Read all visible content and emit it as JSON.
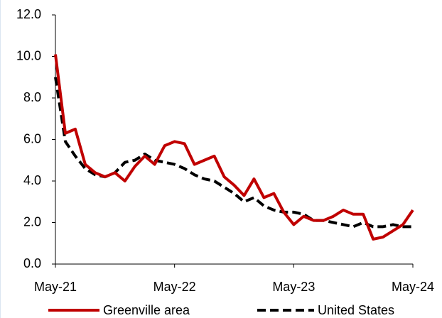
{
  "chart_data": {
    "type": "line",
    "categories": [
      "May-21",
      null,
      null,
      null,
      null,
      null,
      null,
      null,
      null,
      null,
      null,
      null,
      "May-22",
      null,
      null,
      null,
      null,
      null,
      null,
      null,
      null,
      null,
      null,
      null,
      "May-23",
      null,
      null,
      null,
      null,
      null,
      null,
      null,
      null,
      null,
      null,
      null,
      "May-24"
    ],
    "series": [
      {
        "name": "Greenville area",
        "color": "#c00000",
        "dashed": false,
        "values": [
          10.1,
          6.3,
          6.5,
          4.8,
          4.4,
          4.2,
          4.4,
          4.0,
          4.7,
          5.2,
          4.8,
          5.7,
          5.9,
          5.8,
          4.8,
          5.0,
          5.2,
          4.2,
          3.8,
          3.3,
          4.1,
          3.2,
          3.4,
          2.5,
          1.9,
          2.3,
          2.1,
          2.1,
          2.3,
          2.6,
          2.4,
          2.4,
          1.2,
          1.3,
          1.6,
          1.9,
          2.6
        ]
      },
      {
        "name": "United States",
        "color": "#000000",
        "dashed": true,
        "values": [
          9.0,
          5.9,
          5.2,
          4.6,
          4.3,
          4.2,
          4.4,
          4.9,
          5.0,
          5.3,
          5.0,
          4.9,
          4.8,
          4.6,
          4.3,
          4.1,
          4.0,
          3.7,
          3.4,
          3.0,
          3.2,
          2.8,
          2.6,
          2.5,
          2.5,
          2.4,
          2.1,
          2.1,
          2.0,
          1.9,
          1.8,
          2.0,
          1.8,
          1.8,
          1.9,
          1.8,
          1.8
        ]
      }
    ],
    "ylim": [
      0,
      12
    ],
    "yticks": [
      {
        "value": 0,
        "label": "0.0"
      },
      {
        "value": 2,
        "label": "2.0"
      },
      {
        "value": 4,
        "label": "4.0"
      },
      {
        "value": 6,
        "label": "6.0"
      },
      {
        "value": 8,
        "label": "8.0"
      },
      {
        "value": 10,
        "label": "10.0"
      },
      {
        "value": 12,
        "label": "12.0"
      }
    ],
    "grid": false,
    "legend": "bottom"
  }
}
